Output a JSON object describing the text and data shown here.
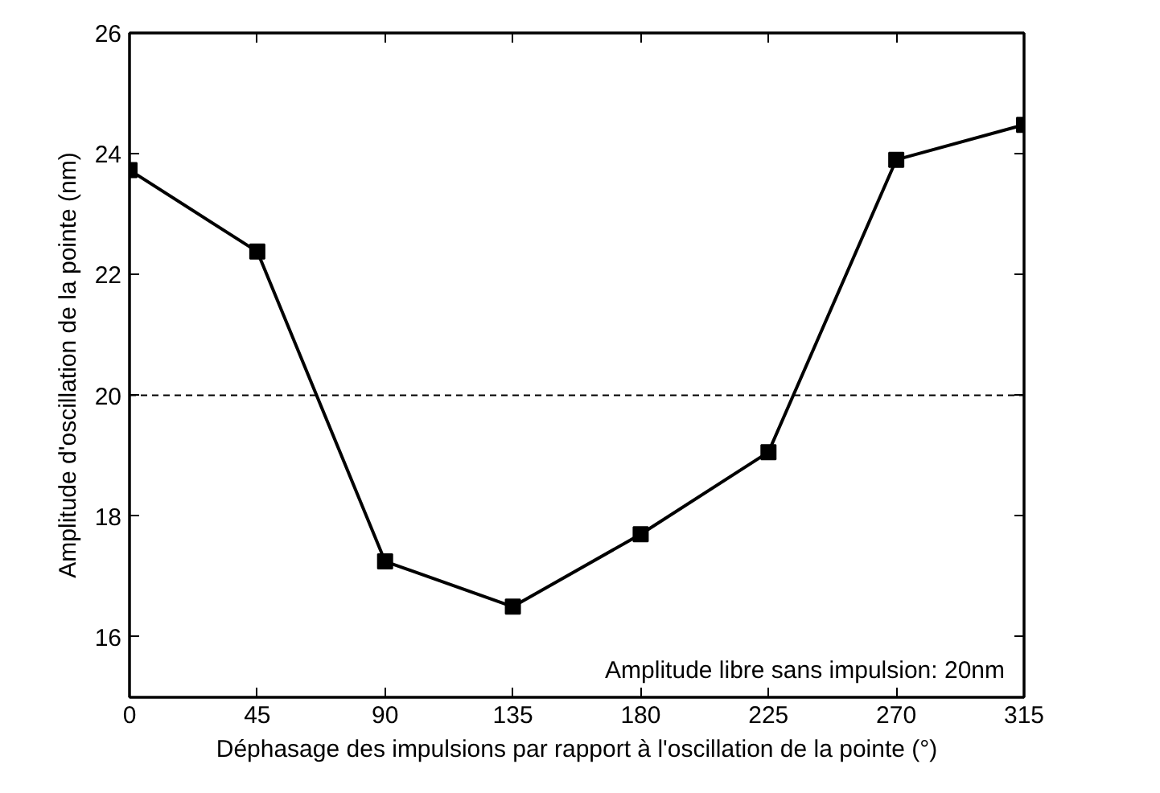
{
  "chart_data": {
    "type": "line",
    "xlabel": "Déphasage des impulsions par rapport à l'oscillation de la pointe (°)",
    "ylabel": "Amplitude d'oscillation de la pointe (nm)",
    "x": [
      0,
      45,
      90,
      135,
      180,
      225,
      270,
      315
    ],
    "series": [
      {
        "color": "#000000",
        "values": [
          23.73,
          22.38,
          17.25,
          16.5,
          17.7,
          19.06,
          23.9,
          24.48
        ]
      }
    ],
    "xlim": [
      0,
      315
    ],
    "xticks": [
      0,
      45,
      90,
      135,
      180,
      225,
      270,
      315
    ],
    "ylim": [
      15,
      26
    ],
    "yticks": [
      16,
      18,
      20,
      22,
      24,
      26
    ],
    "ref_lines": [
      {
        "axis": "y",
        "value": 20,
        "color": "#000000",
        "line_style": "dashed"
      }
    ],
    "annotations": [
      "Amplitude libre sans impulsion: 20nm"
    ],
    "marker": "square",
    "line_style": "solid"
  }
}
